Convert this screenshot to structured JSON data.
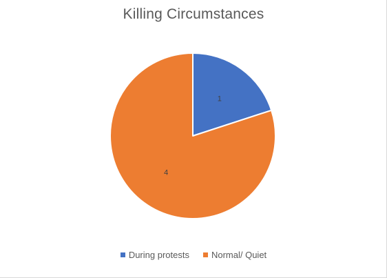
{
  "chart_data": {
    "type": "pie",
    "title": "Killing Circumstances",
    "categories": [
      "During protests",
      "Normal/ Quiet"
    ],
    "values": [
      1,
      4
    ],
    "data_labels": [
      "1",
      "4"
    ],
    "colors": [
      "#4472c4",
      "#ed7d31"
    ],
    "start_angle_deg": 0,
    "direction": "clockwise",
    "legend_position": "bottom"
  }
}
